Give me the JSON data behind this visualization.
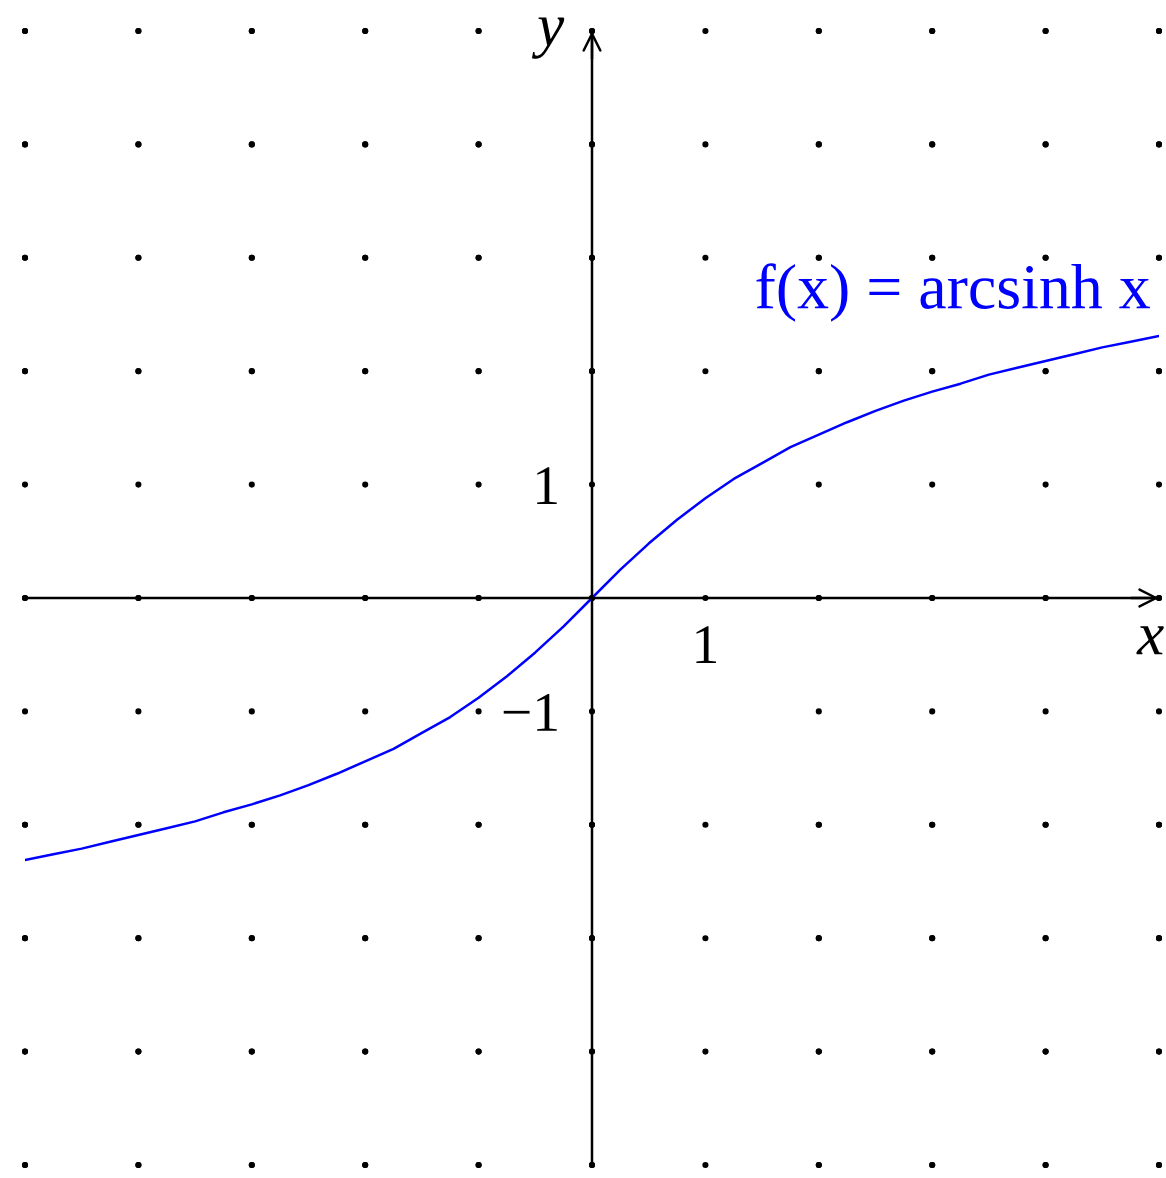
{
  "chart_data": {
    "type": "line",
    "xlabel": "x",
    "ylabel": "y",
    "categories": [
      null,
      null,
      null,
      null,
      null,
      null,
      null,
      null,
      null,
      null,
      null,
      null,
      null,
      null,
      null,
      null,
      null,
      null,
      null,
      null,
      null,
      null,
      null,
      null,
      "1",
      null,
      null,
      null,
      null,
      null,
      null,
      null,
      null,
      null,
      null,
      null,
      null,
      null,
      null,
      null,
      null
    ],
    "ylim": [
      -5,
      5
    ],
    "yticks": [
      {
        "value": -1,
        "label": "−1"
      },
      {
        "value": 1,
        "label": "1"
      }
    ],
    "grid": true,
    "series": [
      {
        "name": "f(x) = arcsinh x",
        "color": "#0000ff",
        "values": [
          -2.31,
          -2.26,
          -2.21,
          -2.15,
          -2.09,
          -2.03,
          -1.97,
          -1.89,
          -1.82,
          -1.74,
          -1.65,
          -1.55,
          -1.44,
          -1.33,
          -1.19,
          -1.05,
          -0.88,
          -0.69,
          -0.48,
          -0.25,
          0,
          0.25,
          0.48,
          0.69,
          0.88,
          1.05,
          1.19,
          1.33,
          1.44,
          1.55,
          1.65,
          1.74,
          1.82,
          1.89,
          1.97,
          2.03,
          2.09,
          2.15,
          2.21,
          2.26,
          2.31
        ]
      }
    ]
  }
}
